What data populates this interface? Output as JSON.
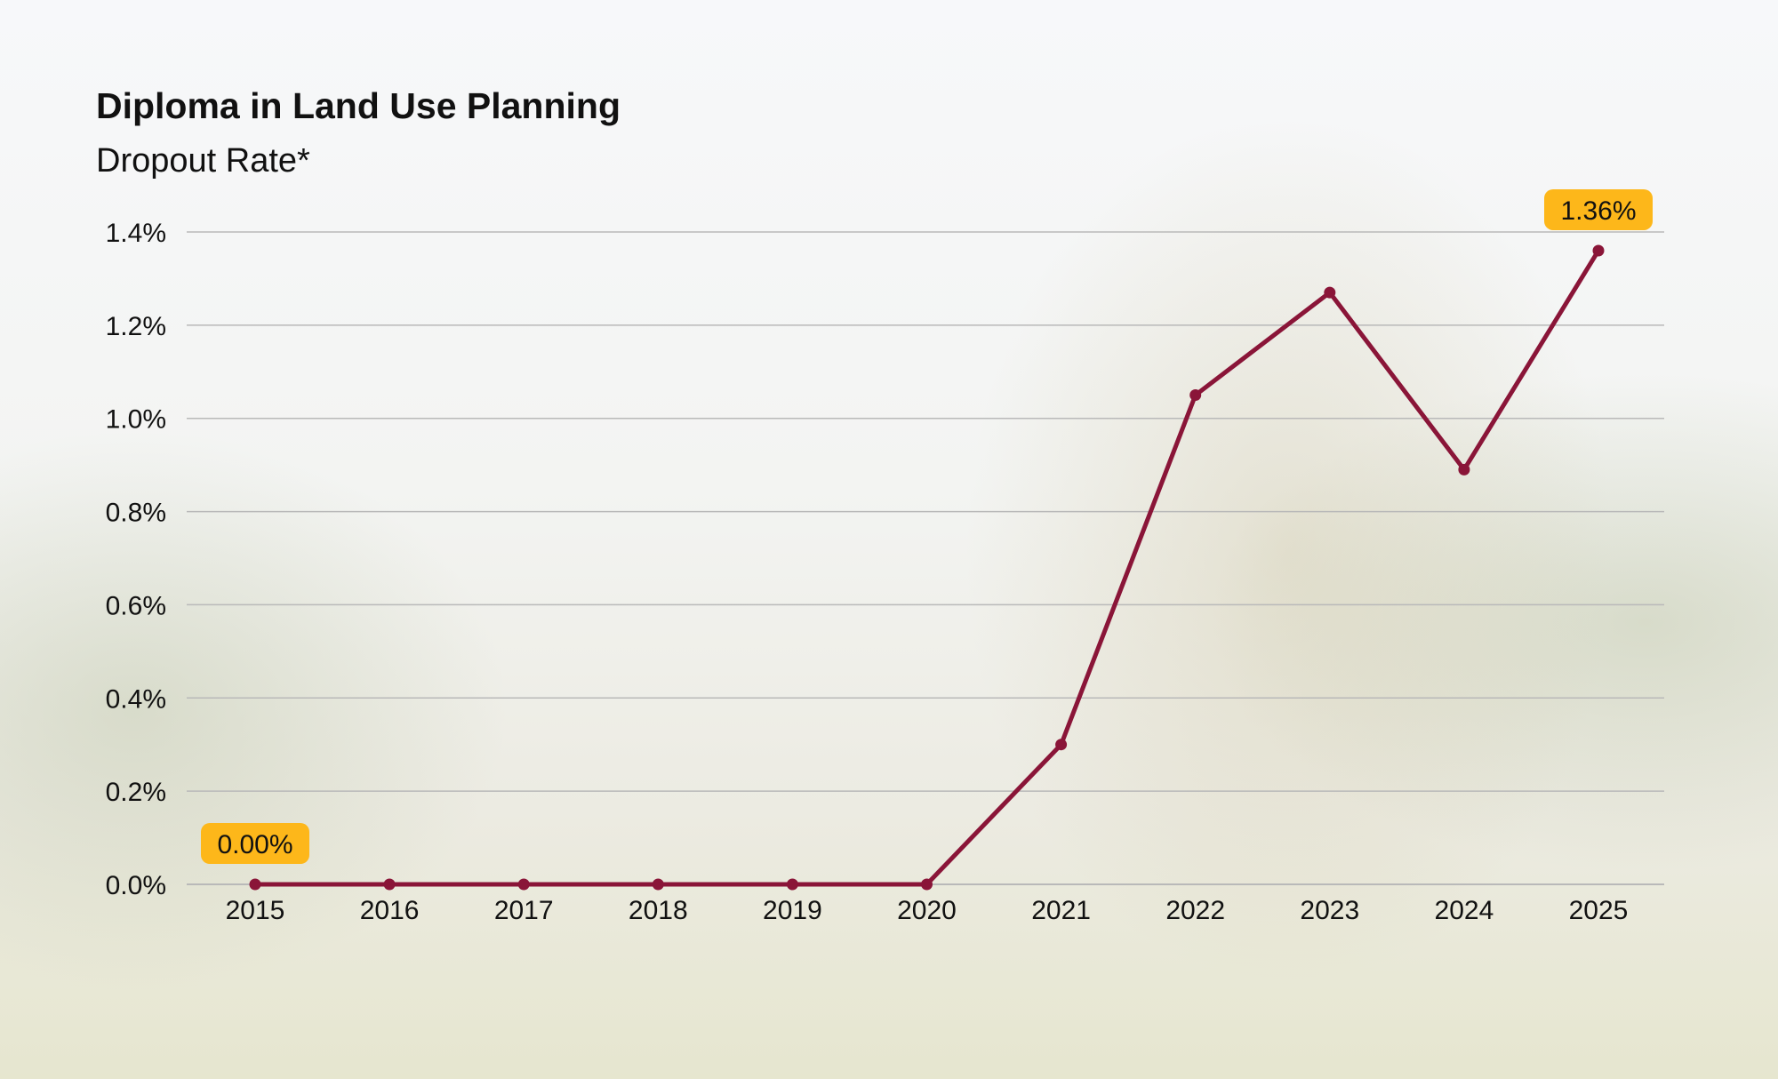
{
  "chart_data": {
    "type": "line",
    "title": "Diploma in Land Use Planning",
    "subtitle": "Dropout Rate*",
    "xlabel": "",
    "ylabel": "",
    "categories": [
      "2015",
      "2016",
      "2017",
      "2018",
      "2019",
      "2020",
      "2021",
      "2022",
      "2023",
      "2024",
      "2025"
    ],
    "series": [
      {
        "name": "Dropout Rate",
        "values": [
          0,
          0,
          0,
          0,
          0,
          0,
          0.3,
          1.05,
          1.27,
          0.89,
          1.36
        ]
      }
    ],
    "ylim": [
      0,
      1.4
    ],
    "yticks": [
      0,
      0.2,
      0.4,
      0.6,
      0.8,
      1.0,
      1.2,
      1.4
    ],
    "ytick_labels": [
      "0.0%",
      "0.2%",
      "0.4%",
      "0.6%",
      "0.8%",
      "1.0%",
      "1.2%",
      "1.4%"
    ],
    "annotations": [
      {
        "index": 0,
        "text": "0.00%"
      },
      {
        "index": 10,
        "text": "1.36%"
      }
    ],
    "grid": true,
    "colors": {
      "line": "#8a1538",
      "annotation_bg": "#fdb71a",
      "grid": "#b9b9b9"
    }
  }
}
